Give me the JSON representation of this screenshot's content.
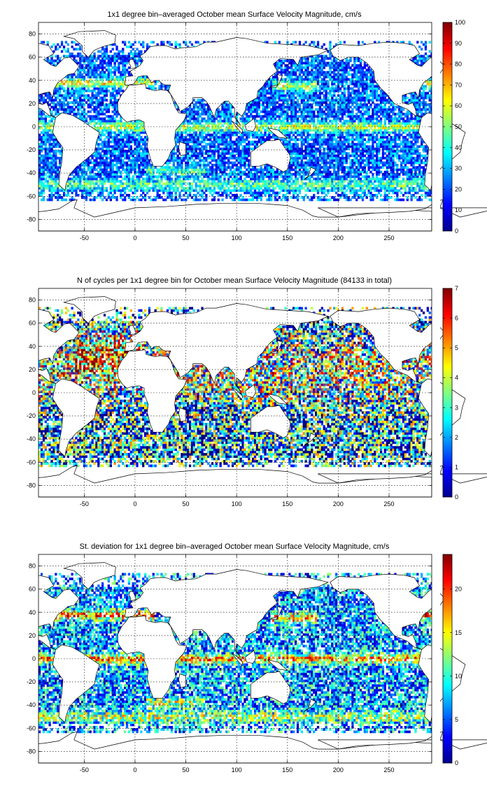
{
  "colormap": "jet",
  "land_color": "#ffffff",
  "panels": [
    {
      "title": "1x1 degree bin–averaged October mean Surface Velocity Magnitude, cm/s",
      "xticks": [
        -50,
        0,
        50,
        100,
        150,
        200,
        250
      ],
      "yticks": [
        80,
        60,
        40,
        20,
        0,
        -20,
        -40,
        -60,
        -80
      ],
      "xlim": [
        -95,
        292
      ],
      "ylim": [
        -90,
        90
      ],
      "colorbar": {
        "min": 0,
        "max": 100,
        "ticks": [
          0,
          10,
          20,
          30,
          40,
          50,
          60,
          70,
          80,
          90,
          100
        ]
      },
      "grid": true,
      "pattern": "mean"
    },
    {
      "title": "N of cycles per 1x1 degree bin for October mean Surface Velocity Magnitude (84133 in total)",
      "xticks": [
        -50,
        0,
        50,
        100,
        150,
        200,
        250
      ],
      "yticks": [
        80,
        60,
        40,
        20,
        0,
        -20,
        -40,
        -60,
        -80
      ],
      "xlim": [
        -95,
        292
      ],
      "ylim": [
        -90,
        90
      ],
      "colorbar": {
        "min": 0,
        "max": 7,
        "ticks": [
          0,
          1,
          2,
          3,
          4,
          5,
          6,
          7
        ]
      },
      "grid": true,
      "pattern": "count"
    },
    {
      "title": "St. deviation for 1x1 degree bin–averaged October mean Surface Velocity Magnitude, cm/s",
      "xticks": [
        -50,
        0,
        50,
        100,
        150,
        200,
        250
      ],
      "yticks": [
        80,
        60,
        40,
        20,
        0,
        -20,
        -40,
        -60,
        -80
      ],
      "xlim": [
        -95,
        292
      ],
      "ylim": [
        -90,
        90
      ],
      "colorbar": {
        "min": 0,
        "max": 24,
        "ticks": [
          0,
          5,
          10,
          15,
          20
        ]
      },
      "grid": true,
      "pattern": "std"
    }
  ]
}
